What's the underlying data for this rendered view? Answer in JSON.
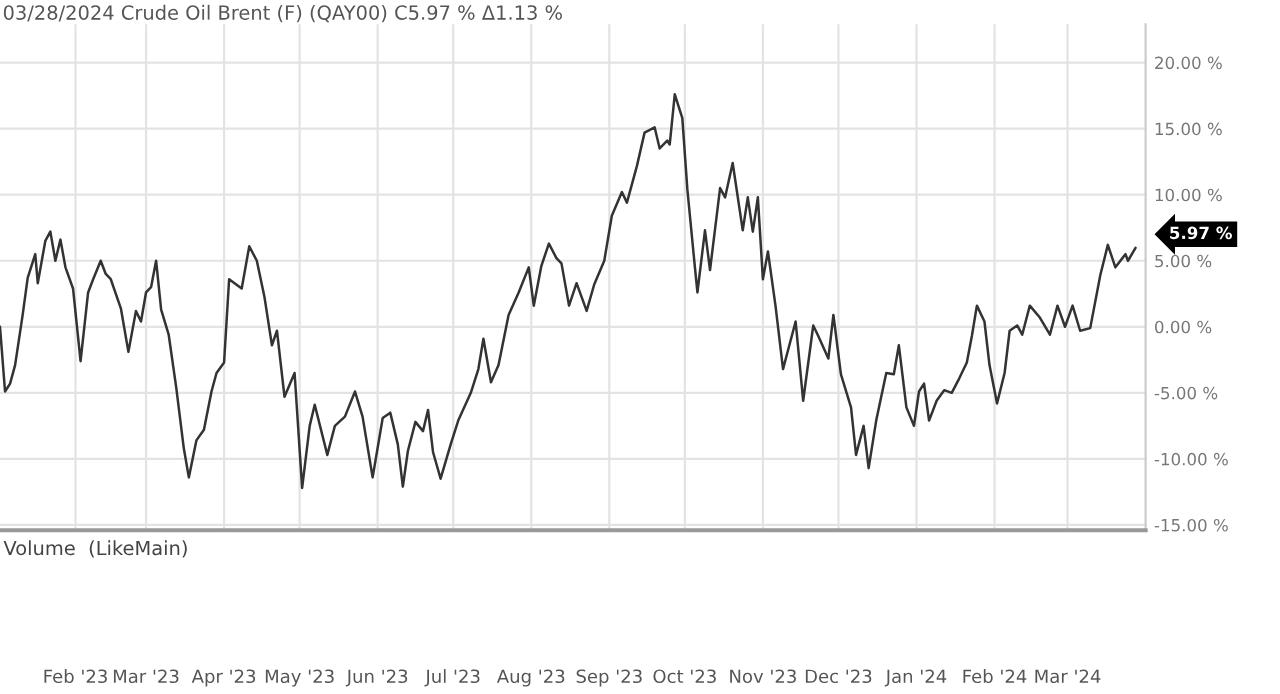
{
  "chart_data": {
    "type": "line",
    "title": "03/28/2024 Crude Oil Brent (F) (QAY00) C5.97 % Δ1.13 %",
    "annotations": [
      {
        "text": "5.97 %",
        "x": "2024-03-28",
        "y": 5.97
      },
      "Volume  (LikeMain)"
    ],
    "x": [
      "2023-01-02",
      "2023-01-04",
      "2023-01-06",
      "2023-01-08",
      "2023-01-11",
      "2023-01-13",
      "2023-01-16",
      "2023-01-17",
      "2023-01-20",
      "2023-01-22",
      "2023-01-24",
      "2023-01-26",
      "2023-01-28",
      "2023-01-31",
      "2023-02-03",
      "2023-02-06",
      "2023-02-08",
      "2023-02-11",
      "2023-02-13",
      "2023-02-15",
      "2023-02-19",
      "2023-02-22",
      "2023-02-25",
      "2023-02-27",
      "2023-03-01",
      "2023-03-03",
      "2023-03-05",
      "2023-03-07",
      "2023-03-10",
      "2023-03-13",
      "2023-03-16",
      "2023-03-18",
      "2023-03-21",
      "2023-03-24",
      "2023-03-27",
      "2023-03-29",
      "2023-04-01",
      "2023-04-03",
      "2023-04-08",
      "2023-04-11",
      "2023-04-14",
      "2023-04-17",
      "2023-04-20",
      "2023-04-22",
      "2023-04-25",
      "2023-04-29",
      "2023-05-02",
      "2023-05-05",
      "2023-05-07",
      "2023-05-12",
      "2023-05-15",
      "2023-05-19",
      "2023-05-23",
      "2023-05-26",
      "2023-05-30",
      "2023-06-03",
      "2023-06-06",
      "2023-06-09",
      "2023-06-11",
      "2023-06-13",
      "2023-06-16",
      "2023-06-19",
      "2023-06-21",
      "2023-06-23",
      "2023-06-26",
      "2023-06-30",
      "2023-07-03",
      "2023-07-08",
      "2023-07-11",
      "2023-07-13",
      "2023-07-16",
      "2023-07-19",
      "2023-07-23",
      "2023-07-27",
      "2023-07-31",
      "2023-08-02",
      "2023-08-05",
      "2023-08-08",
      "2023-08-11",
      "2023-08-13",
      "2023-08-16",
      "2023-08-19",
      "2023-08-23",
      "2023-08-26",
      "2023-08-30",
      "2023-09-02",
      "2023-09-06",
      "2023-09-08",
      "2023-09-12",
      "2023-09-15",
      "2023-09-19",
      "2023-09-21",
      "2023-09-24",
      "2023-09-25",
      "2023-09-27",
      "2023-09-30",
      "2023-10-02",
      "2023-10-05",
      "2023-10-06",
      "2023-10-09",
      "2023-10-11",
      "2023-10-15",
      "2023-10-17",
      "2023-10-20",
      "2023-10-24",
      "2023-10-26",
      "2023-10-28",
      "2023-10-30",
      "2023-11-01",
      "2023-11-03",
      "2023-11-06",
      "2023-11-09",
      "2023-11-14",
      "2023-11-17",
      "2023-11-21",
      "2023-11-23",
      "2023-11-27",
      "2023-11-29",
      "2023-12-02",
      "2023-12-06",
      "2023-12-08",
      "2023-12-11",
      "2023-12-13",
      "2023-12-16",
      "2023-12-20",
      "2023-12-23",
      "2023-12-25",
      "2023-12-28",
      "2023-12-31",
      "2024-01-02",
      "2024-01-04",
      "2024-01-06",
      "2024-01-09",
      "2024-01-12",
      "2024-01-15",
      "2024-01-18",
      "2024-01-21",
      "2024-01-23",
      "2024-01-25",
      "2024-01-28",
      "2024-01-30",
      "2024-02-02",
      "2024-02-05",
      "2024-02-07",
      "2024-02-10",
      "2024-02-12",
      "2024-02-15",
      "2024-02-19",
      "2024-02-23",
      "2024-02-26",
      "2024-02-29",
      "2024-03-03",
      "2024-03-06",
      "2024-03-10",
      "2024-03-14",
      "2024-03-17",
      "2024-03-20",
      "2024-03-24",
      "2024-03-25",
      "2024-03-28"
    ],
    "series": [
      {
        "color": "#333333",
        "values": [
          0,
          -4.9,
          -4.3,
          -2.9,
          0.9,
          3.7,
          5.5,
          3.3,
          6.5,
          7.2,
          5.0,
          6.6,
          4.5,
          2.9,
          -2.6,
          2.6,
          3.6,
          5.0,
          4.0,
          3.6,
          1.4,
          -1.9,
          1.2,
          0.4,
          2.6,
          3.0,
          5.0,
          1.3,
          -0.6,
          -4.6,
          -9.2,
          -11.4,
          -8.6,
          -7.8,
          -4.9,
          -3.5,
          -2.7,
          3.6,
          2.9,
          6.1,
          5.0,
          2.3,
          -1.4,
          -0.3,
          -5.3,
          -3.5,
          -12.2,
          -7.5,
          -5.9,
          -9.7,
          -7.5,
          -6.8,
          -4.9,
          -6.8,
          -11.4,
          -6.9,
          -6.5,
          -8.9,
          -12.1,
          -9.4,
          -7.2,
          -7.9,
          -6.3,
          -9.5,
          -11.5,
          -8.9,
          -7.1,
          -5.0,
          -3.2,
          -0.9,
          -4.2,
          -2.9,
          0.9,
          2.6,
          4.5,
          1.6,
          4.6,
          6.3,
          5.2,
          4.8,
          1.6,
          3.3,
          1.2,
          3.2,
          5.0,
          8.4,
          10.2,
          9.4,
          12.2,
          14.7,
          15.1,
          13.5,
          14.1,
          13.8,
          17.6,
          15.8,
          10.4,
          4.5,
          2.6,
          7.3,
          4.3,
          10.5,
          9.8,
          12.4,
          7.3,
          9.8,
          7.2,
          9.8,
          3.6,
          5.7,
          1.6,
          -3.2,
          0.4,
          -5.6,
          0.1,
          -0.7,
          -2.4,
          0.9,
          -3.6,
          -6.1,
          -9.7,
          -7.5,
          -10.7,
          -7.1,
          -3.5,
          -3.6,
          -1.4,
          -6.1,
          -7.5,
          -4.9,
          -4.3,
          -7.1,
          -5.6,
          -4.8,
          -5.0,
          -3.9,
          -2.7,
          -0.7,
          1.6,
          0.4,
          -2.9,
          -5.8,
          -3.5,
          -0.3,
          0.1,
          -0.6,
          1.6,
          0.7,
          -0.6,
          1.6,
          0,
          1.6,
          -0.3,
          -0.1,
          3.9,
          6.2,
          4.5,
          5.5,
          5.0,
          5.97
        ]
      }
    ],
    "xlim": [
      "2023-01-02",
      "2024-04-01"
    ],
    "xticks": [
      {
        "value": "2023-02-01",
        "label": "Feb '23"
      },
      {
        "value": "2023-03-01",
        "label": "Mar '23"
      },
      {
        "value": "2023-04-01",
        "label": "Apr '23"
      },
      {
        "value": "2023-05-01",
        "label": "May '23"
      },
      {
        "value": "2023-06-01",
        "label": "Jun '23"
      },
      {
        "value": "2023-07-01",
        "label": "Jul '23"
      },
      {
        "value": "2023-08-01",
        "label": "Aug '23"
      },
      {
        "value": "2023-09-01",
        "label": "Sep '23"
      },
      {
        "value": "2023-10-01",
        "label": "Oct '23"
      },
      {
        "value": "2023-11-01",
        "label": "Nov '23"
      },
      {
        "value": "2023-12-01",
        "label": "Dec '23"
      },
      {
        "value": "2024-01-01",
        "label": "Jan '24"
      },
      {
        "value": "2024-02-01",
        "label": "Feb '24"
      },
      {
        "value": "2024-03-01",
        "label": "Mar '24"
      }
    ],
    "ylim": [
      -15.4,
      22.9
    ],
    "yticks": [
      {
        "value": -15,
        "label": "-15.00 %"
      },
      {
        "value": -10,
        "label": "-10.00 %"
      },
      {
        "value": -5,
        "label": "-5.00 %"
      },
      {
        "value": 0,
        "label": "0.00 %"
      },
      {
        "value": 5,
        "label": "5.00 %"
      },
      {
        "value": 10,
        "label": "10.00 %"
      },
      {
        "value": 15,
        "label": "15.00 %"
      },
      {
        "value": 20,
        "label": "20.00 %"
      }
    ],
    "grid": true,
    "marker": "none",
    "line_style": "solid"
  }
}
